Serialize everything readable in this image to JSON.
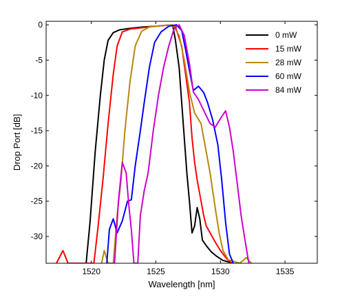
{
  "chart_data": {
    "type": "line",
    "title": "",
    "xlabel": "Wavelength [nm]",
    "ylabel": "Drop Port [dB]",
    "xlim": [
      1516.5,
      1537.5
    ],
    "ylim": [
      -33.8,
      0.5
    ],
    "xticks": [
      1520,
      1525,
      1530,
      1535
    ],
    "yticks": [
      0,
      -5,
      -10,
      -15,
      -20,
      -25,
      -30
    ],
    "grid": false,
    "legend": "top-right",
    "series": [
      {
        "name": "0 mW",
        "color": "#000000",
        "points": [
          [
            1519.6,
            -33.8
          ],
          [
            1519.9,
            -28
          ],
          [
            1520.3,
            -18
          ],
          [
            1520.7,
            -10
          ],
          [
            1521.0,
            -5
          ],
          [
            1521.3,
            -2.2
          ],
          [
            1521.7,
            -1.1
          ],
          [
            1522.2,
            -0.7
          ],
          [
            1523.0,
            -0.5
          ],
          [
            1524.0,
            -0.3
          ],
          [
            1525.0,
            -0.2
          ],
          [
            1525.9,
            -0.05
          ],
          [
            1526.3,
            -0.05
          ],
          [
            1526.5,
            -2
          ],
          [
            1526.8,
            -6
          ],
          [
            1527.0,
            -11
          ],
          [
            1527.2,
            -16
          ],
          [
            1527.4,
            -21
          ],
          [
            1527.6,
            -25
          ],
          [
            1527.8,
            -29.5
          ],
          [
            1528.0,
            -28.5
          ],
          [
            1528.2,
            -25.9
          ],
          [
            1528.4,
            -27.5
          ],
          [
            1528.6,
            -30.5
          ],
          [
            1528.9,
            -31.3
          ],
          [
            1529.3,
            -32.2
          ],
          [
            1529.7,
            -32.8
          ],
          [
            1530.2,
            -33.4
          ],
          [
            1531.0,
            -33.8
          ]
        ]
      },
      {
        "name": "15 mW",
        "color": "#ff0000",
        "points": [
          [
            1517.3,
            -33.8
          ],
          [
            1517.8,
            -32.0
          ],
          [
            1518.2,
            -33.8
          ],
          [
            1520.2,
            -33.8
          ],
          [
            1520.5,
            -29
          ],
          [
            1520.9,
            -22
          ],
          [
            1521.3,
            -14
          ],
          [
            1521.7,
            -7
          ],
          [
            1522.0,
            -3
          ],
          [
            1522.4,
            -1.0
          ],
          [
            1523.0,
            -0.6
          ],
          [
            1524.0,
            -0.4
          ],
          [
            1525.0,
            -0.2
          ],
          [
            1526.0,
            -0.05
          ],
          [
            1526.5,
            -0.2
          ],
          [
            1527.0,
            -3
          ],
          [
            1527.3,
            -7
          ],
          [
            1527.6,
            -11
          ],
          [
            1527.8,
            -16
          ],
          [
            1528.0,
            -19.5
          ],
          [
            1528.2,
            -22
          ],
          [
            1528.5,
            -25
          ],
          [
            1528.7,
            -27
          ],
          [
            1528.9,
            -28.5
          ],
          [
            1529.2,
            -29.5
          ],
          [
            1529.6,
            -30.8
          ],
          [
            1530.0,
            -32
          ],
          [
            1530.5,
            -33.2
          ],
          [
            1530.9,
            -33.8
          ]
        ]
      },
      {
        "name": "28 mW",
        "color": "#b8860b",
        "points": [
          [
            1520.8,
            -33.8
          ],
          [
            1521.0,
            -32.0
          ],
          [
            1521.3,
            -33.8
          ],
          [
            1521.7,
            -33.8
          ],
          [
            1522.0,
            -27
          ],
          [
            1522.3,
            -22
          ],
          [
            1522.6,
            -15
          ],
          [
            1523.0,
            -8
          ],
          [
            1523.4,
            -3
          ],
          [
            1523.9,
            -0.9
          ],
          [
            1524.5,
            -0.3
          ],
          [
            1525.5,
            -0.1
          ],
          [
            1526.3,
            0
          ],
          [
            1526.8,
            -1.5
          ],
          [
            1527.2,
            -5
          ],
          [
            1527.6,
            -9.5
          ],
          [
            1528.0,
            -12.5
          ],
          [
            1528.5,
            -14
          ],
          [
            1528.8,
            -17
          ],
          [
            1529.2,
            -21
          ],
          [
            1529.6,
            -26
          ],
          [
            1529.9,
            -29.5
          ],
          [
            1530.2,
            -32
          ],
          [
            1530.6,
            -33.3
          ],
          [
            1531.5,
            -33.8
          ],
          [
            1532.0,
            -33.0
          ],
          [
            1532.4,
            -33.8
          ]
        ]
      },
      {
        "name": "60 mW",
        "color": "#0000ff",
        "points": [
          [
            1521.2,
            -33.8
          ],
          [
            1521.4,
            -29
          ],
          [
            1521.7,
            -27.5
          ],
          [
            1522.0,
            -29.5
          ],
          [
            1522.4,
            -27.8
          ],
          [
            1522.8,
            -25
          ],
          [
            1523.1,
            -24.8
          ],
          [
            1523.4,
            -20
          ],
          [
            1523.8,
            -15
          ],
          [
            1524.1,
            -11
          ],
          [
            1524.5,
            -6
          ],
          [
            1524.9,
            -2.5
          ],
          [
            1525.4,
            -1.0
          ],
          [
            1526.0,
            -0.2
          ],
          [
            1526.6,
            0
          ],
          [
            1527.0,
            -0.8
          ],
          [
            1527.3,
            -3.5
          ],
          [
            1527.6,
            -6.5
          ],
          [
            1527.9,
            -9.3
          ],
          [
            1528.3,
            -8.7
          ],
          [
            1528.7,
            -9.6
          ],
          [
            1529.0,
            -11
          ],
          [
            1529.4,
            -13.5
          ],
          [
            1529.8,
            -17
          ],
          [
            1530.1,
            -22
          ],
          [
            1530.4,
            -28
          ],
          [
            1530.7,
            -32.5
          ],
          [
            1531.0,
            -33.8
          ]
        ]
      },
      {
        "name": "84 mW",
        "color": "#cc00cc",
        "points": [
          [
            1521.8,
            -33.8
          ],
          [
            1522.1,
            -25
          ],
          [
            1522.4,
            -19.5
          ],
          [
            1522.7,
            -21
          ],
          [
            1522.9,
            -25.5
          ],
          [
            1523.1,
            -29
          ],
          [
            1523.3,
            -33.8
          ],
          [
            1523.6,
            -33.8
          ],
          [
            1523.8,
            -27
          ],
          [
            1524.1,
            -23.5
          ],
          [
            1524.4,
            -21
          ],
          [
            1524.8,
            -15
          ],
          [
            1525.2,
            -10
          ],
          [
            1525.6,
            -6
          ],
          [
            1526.0,
            -3
          ],
          [
            1526.4,
            -0.6
          ],
          [
            1526.8,
            0
          ],
          [
            1527.2,
            -1.5
          ],
          [
            1527.6,
            -5.5
          ],
          [
            1527.9,
            -9.5
          ],
          [
            1528.3,
            -10.6
          ],
          [
            1528.8,
            -12.5
          ],
          [
            1529.2,
            -14
          ],
          [
            1529.6,
            -14.5
          ],
          [
            1530.1,
            -13
          ],
          [
            1530.4,
            -12.2
          ],
          [
            1530.7,
            -14.5
          ],
          [
            1531.0,
            -18
          ],
          [
            1531.3,
            -22.5
          ],
          [
            1531.6,
            -27
          ],
          [
            1531.9,
            -30.5
          ],
          [
            1532.2,
            -33.8
          ]
        ]
      }
    ]
  }
}
